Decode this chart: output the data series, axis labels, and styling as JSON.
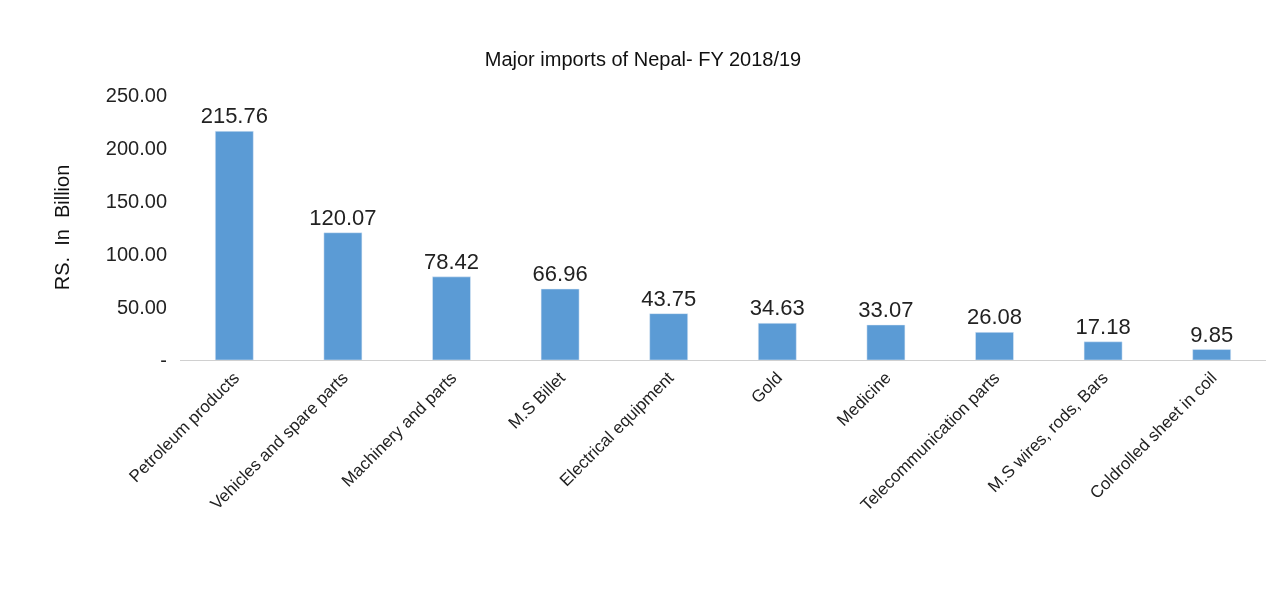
{
  "chart_data": {
    "type": "bar",
    "title": "Major imports of Nepal- FY 2018/19",
    "ylabel": "RS.  In  Billion",
    "categories": [
      "Petroleum products",
      "Vehicles and spare parts",
      "Machinery and parts",
      "M.S Billet",
      "Electrical equipment",
      "Gold",
      "Medicine",
      "Telecommunication parts",
      "M.S wires, rods, Bars",
      "Coldrolled sheet in coil"
    ],
    "values": [
      215.76,
      120.07,
      78.42,
      66.96,
      43.75,
      34.63,
      33.07,
      26.08,
      17.18,
      9.85
    ],
    "color": "#5b9bd5",
    "ylim": [
      0,
      250
    ],
    "yticks": [
      {
        "value": 0,
        "label": "-"
      },
      {
        "value": 50,
        "label": "50.00"
      },
      {
        "value": 100,
        "label": "100.00"
      },
      {
        "value": 150,
        "label": "150.00"
      },
      {
        "value": 200,
        "label": "200.00"
      },
      {
        "value": 250,
        "label": "250.00"
      }
    ],
    "data_labels": true
  }
}
